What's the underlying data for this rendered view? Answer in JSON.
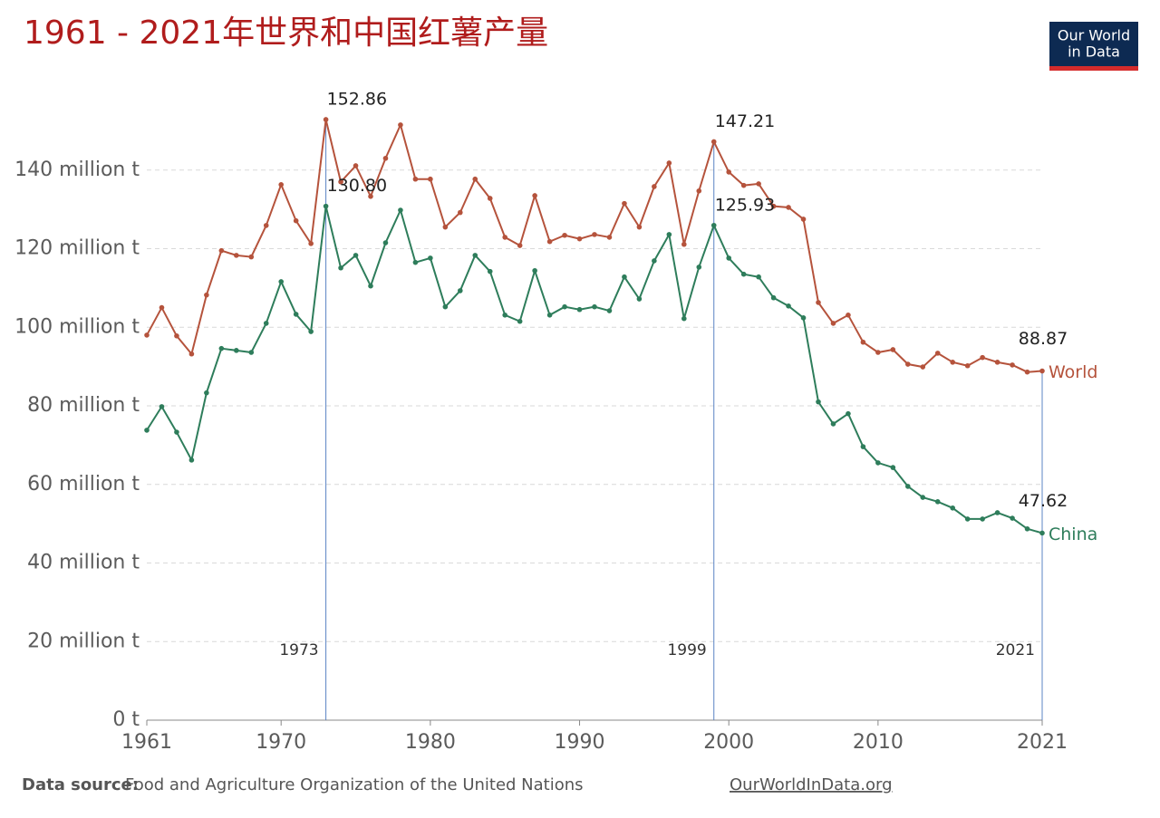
{
  "chart_data": {
    "type": "line",
    "title": "1961 - 2021年世界和中国红薯产量",
    "logo": [
      "Our World",
      "in Data"
    ],
    "source_label": "Data source:",
    "source": "Food and Agriculture Organization of the United Nations",
    "site": "OurWorldInData.org",
    "x": [
      1961,
      1962,
      1963,
      1964,
      1965,
      1966,
      1967,
      1968,
      1969,
      1970,
      1971,
      1972,
      1973,
      1974,
      1975,
      1976,
      1977,
      1978,
      1979,
      1980,
      1981,
      1982,
      1983,
      1984,
      1985,
      1986,
      1987,
      1988,
      1989,
      1990,
      1991,
      1992,
      1993,
      1994,
      1995,
      1996,
      1997,
      1998,
      1999,
      2000,
      2001,
      2002,
      2003,
      2004,
      2005,
      2006,
      2007,
      2008,
      2009,
      2010,
      2011,
      2012,
      2013,
      2014,
      2015,
      2016,
      2017,
      2018,
      2019,
      2020,
      2021
    ],
    "series": [
      {
        "name": "World",
        "color": "#b5533c",
        "values": [
          98,
          105,
          97.8,
          93.2,
          108.2,
          119.5,
          118.3,
          117.9,
          125.9,
          136.3,
          127.1,
          121.3,
          152.86,
          137,
          141.1,
          133.3,
          143,
          151.5,
          137.7,
          137.7,
          125.5,
          129.2,
          137.7,
          132.8,
          122.9,
          120.8,
          133.5,
          121.8,
          123.4,
          122.5,
          123.6,
          122.9,
          131.5,
          125.5,
          135.8,
          141.8,
          121.1,
          134.7,
          147.21,
          139.5,
          136.1,
          136.5,
          130.8,
          130.5,
          127.5,
          106.3,
          101,
          103.1,
          96.2,
          93.6,
          94.3,
          90.6,
          89.9,
          93.4,
          91.1,
          90.2,
          92.3,
          91.1,
          90.4,
          88.6,
          88.87
        ]
      },
      {
        "name": "China",
        "color": "#2e7d5b",
        "values": [
          73.8,
          79.8,
          73.3,
          66.2,
          83.3,
          94.6,
          94.1,
          93.6,
          101,
          111.6,
          103.3,
          98.9,
          130.8,
          115.1,
          118.3,
          110.5,
          121.5,
          129.8,
          116.5,
          117.6,
          105.2,
          109.3,
          118.3,
          114.2,
          103.1,
          101.5,
          114.4,
          103.1,
          105.2,
          104.5,
          105.2,
          104.2,
          112.8,
          107.2,
          116.9,
          123.6,
          102.2,
          115.3,
          125.93,
          117.6,
          113.5,
          112.8,
          107.5,
          105.4,
          102.4,
          81,
          75.4,
          78,
          69.6,
          65.5,
          64.3,
          59.5,
          56.7,
          55.6,
          54,
          51.2,
          51.2,
          52.8,
          51.4,
          48.7,
          47.62
        ]
      }
    ],
    "value_labels": {
      "World": [
        "152.86",
        "147.21",
        "88.87"
      ],
      "China": [
        "130.80",
        "125.93",
        "47.62"
      ]
    },
    "highlight_years": [
      1973,
      1999,
      2021
    ],
    "xlim": [
      1961,
      2021
    ],
    "xticks": [
      1961,
      1970,
      1980,
      1990,
      2000,
      2010,
      2021
    ],
    "ylim": [
      0,
      160
    ],
    "yticks": [
      {
        "value": 0,
        "label": "0 t"
      },
      {
        "value": 20,
        "label": "20 million t"
      },
      {
        "value": 40,
        "label": "40 million t"
      },
      {
        "value": 60,
        "label": "60 million t"
      },
      {
        "value": 80,
        "label": "80 million t"
      },
      {
        "value": 100,
        "label": "100 million t"
      },
      {
        "value": 120,
        "label": "120 million t"
      },
      {
        "value": 140,
        "label": "140 million t"
      }
    ],
    "grid": true
  }
}
